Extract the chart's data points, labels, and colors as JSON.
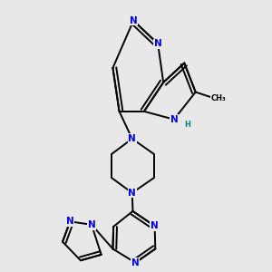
{
  "bg_color": "#e8e8e8",
  "bond_color": "#000000",
  "N_color": "#0000ee",
  "H_color": "#008888",
  "lw": 1.4,
  "dbo": 0.012,
  "fs": 7.5,
  "fig_w": 3.0,
  "fig_h": 3.0,
  "dpi": 100,
  "xlim": [
    0.05,
    0.95
  ],
  "ylim": [
    0.05,
    0.98
  ]
}
